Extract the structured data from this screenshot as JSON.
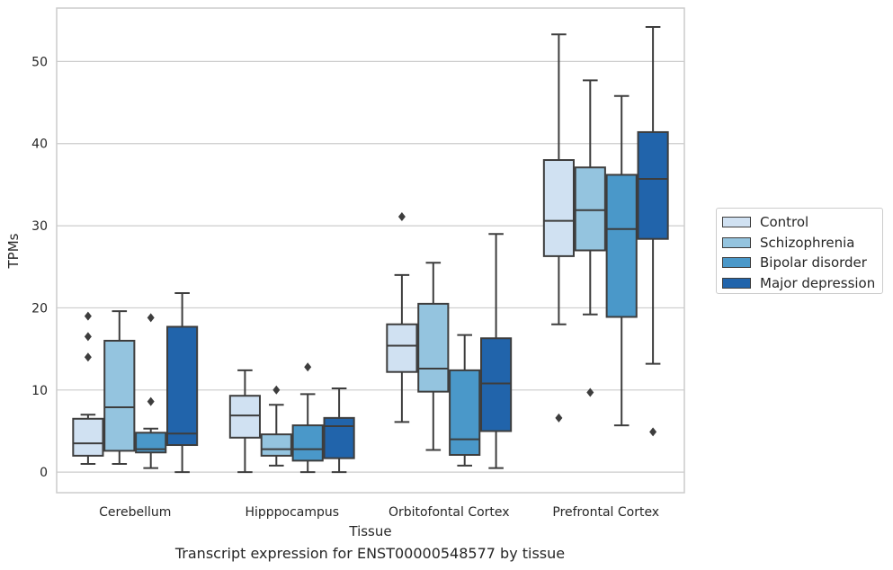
{
  "caption": "Transcript expression for ENST00000548577 by tissue",
  "chart_data": {
    "type": "box",
    "title": "",
    "xlabel": "Tissue",
    "ylabel": "TPMs",
    "categories": [
      "Cerebellum",
      "Hipppocampus",
      "Orbitofontal Cortex",
      "Prefrontal Cortex"
    ],
    "ylim": [
      -2.5,
      56.5
    ],
    "yticks": [
      0,
      10,
      20,
      30,
      40,
      50
    ],
    "grid": "horizontal",
    "legend_position": "right",
    "series": [
      {
        "name": "Control",
        "color": "#d0e1f2",
        "boxes": [
          {
            "min": 1.0,
            "q1": 2.0,
            "median": 3.5,
            "q3": 6.5,
            "max": 7.0,
            "outliers": [
              14.0,
              16.5,
              19.0
            ]
          },
          {
            "min": 0.0,
            "q1": 4.2,
            "median": 6.9,
            "q3": 9.3,
            "max": 12.4,
            "outliers": []
          },
          {
            "min": 6.1,
            "q1": 12.2,
            "median": 15.4,
            "q3": 18.0,
            "max": 24.0,
            "outliers": [
              31.1
            ]
          },
          {
            "min": 18.0,
            "q1": 26.3,
            "median": 30.6,
            "q3": 38.0,
            "max": 53.3,
            "outliers": [
              6.6
            ]
          }
        ]
      },
      {
        "name": "Schizophrenia",
        "color": "#94c4df",
        "boxes": [
          {
            "min": 1.0,
            "q1": 2.6,
            "median": 7.9,
            "q3": 16.0,
            "max": 19.6,
            "outliers": []
          },
          {
            "min": 0.8,
            "q1": 2.0,
            "median": 2.8,
            "q3": 4.6,
            "max": 8.2,
            "outliers": [
              10.0
            ]
          },
          {
            "min": 2.7,
            "q1": 9.8,
            "median": 12.6,
            "q3": 20.5,
            "max": 25.5,
            "outliers": []
          },
          {
            "min": 19.2,
            "q1": 27.0,
            "median": 31.9,
            "q3": 37.1,
            "max": 47.7,
            "outliers": [
              9.7
            ]
          }
        ]
      },
      {
        "name": "Bipolar disorder",
        "color": "#4a98c9",
        "boxes": [
          {
            "min": 0.5,
            "q1": 2.4,
            "median": 2.8,
            "q3": 4.8,
            "max": 5.3,
            "outliers": [
              8.6,
              18.8
            ]
          },
          {
            "min": 0.0,
            "q1": 1.4,
            "median": 2.8,
            "q3": 5.7,
            "max": 9.5,
            "outliers": [
              12.8
            ]
          },
          {
            "min": 0.8,
            "q1": 2.1,
            "median": 4.0,
            "q3": 12.4,
            "max": 16.7,
            "outliers": []
          },
          {
            "min": 5.7,
            "q1": 18.9,
            "median": 29.6,
            "q3": 36.2,
            "max": 45.8,
            "outliers": []
          }
        ]
      },
      {
        "name": "Major depression",
        "color": "#2164ab",
        "boxes": [
          {
            "min": 0.0,
            "q1": 3.3,
            "median": 4.7,
            "q3": 17.7,
            "max": 21.8,
            "outliers": []
          },
          {
            "min": 0.0,
            "q1": 1.7,
            "median": 5.6,
            "q3": 6.6,
            "max": 10.2,
            "outliers": []
          },
          {
            "min": 0.5,
            "q1": 5.0,
            "median": 10.8,
            "q3": 16.3,
            "max": 29.0,
            "outliers": []
          },
          {
            "min": 13.2,
            "q1": 28.4,
            "median": 35.7,
            "q3": 41.4,
            "max": 54.2,
            "outliers": [
              4.9
            ]
          }
        ]
      }
    ]
  }
}
